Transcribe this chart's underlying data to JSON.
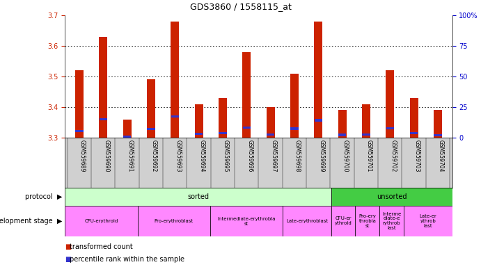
{
  "title": "GDS3860 / 1558115_at",
  "samples": [
    "GSM559689",
    "GSM559690",
    "GSM559691",
    "GSM559692",
    "GSM559693",
    "GSM559694",
    "GSM559695",
    "GSM559696",
    "GSM559697",
    "GSM559698",
    "GSM559699",
    "GSM559700",
    "GSM559701",
    "GSM559702",
    "GSM559703",
    "GSM559704"
  ],
  "transformed_count": [
    3.52,
    3.63,
    3.36,
    3.49,
    3.68,
    3.41,
    3.43,
    3.58,
    3.4,
    3.51,
    3.68,
    3.39,
    3.41,
    3.52,
    3.43,
    3.39
  ],
  "percentile_rank_pct": [
    10,
    18,
    7,
    15,
    18,
    12,
    12,
    12,
    10,
    14,
    15,
    10,
    10,
    14,
    12,
    8
  ],
  "ymin": 3.3,
  "ymax": 3.7,
  "yticks_left": [
    3.3,
    3.4,
    3.5,
    3.6,
    3.7
  ],
  "yticks_right": [
    0,
    25,
    50,
    75,
    100
  ],
  "bar_color": "#cc2200",
  "blue_color": "#3333cc",
  "sorted_count": 11,
  "total_count": 16,
  "sorted_light": "#ccffcc",
  "sorted_dark": "#44cc44",
  "magenta": "#ff88ff",
  "gray_label": "#d0d0d0",
  "label_left_color": "#cc2200",
  "label_right_color": "#0000cc",
  "bar_width": 0.35
}
